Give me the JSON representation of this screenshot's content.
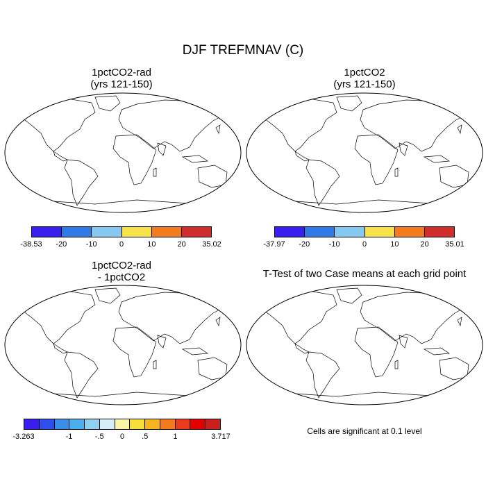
{
  "title": "DJF TREFMNAV (C)",
  "panels": [
    {
      "line1": "1pctCO2-rad",
      "line2": "(yrs 121-150)"
    },
    {
      "line1": "1pctCO2",
      "line2": "(yrs 121-150)"
    },
    {
      "line1": "1pctCO2-rad",
      "line2": "- 1pctCO2"
    },
    {
      "line1": "T-Test of two Case means at each grid point",
      "line2": ""
    }
  ],
  "ttest_note": "Cells are significant at 0.1 level",
  "colorbars": [
    {
      "colors": [
        "#3a1ef0",
        "#2f7ae6",
        "#86c8ef",
        "#f6e24a",
        "#f47a1e",
        "#d22d2d"
      ],
      "labels": [
        "-38.53",
        "-20",
        "-10",
        "0",
        "10",
        "20",
        "35.02"
      ]
    },
    {
      "colors": [
        "#3a1ef0",
        "#2f7ae6",
        "#86c8ef",
        "#f6e24a",
        "#f47a1e",
        "#d22d2d"
      ],
      "labels": [
        "-37.97",
        "-20",
        "-10",
        "0",
        "10",
        "20",
        "35.01"
      ]
    },
    {
      "colors": [
        "#3a1ef0",
        "#2f4fec",
        "#3b8ee8",
        "#4aaeef",
        "#8fd0ef",
        "#d6eef7",
        "#fbf5a8",
        "#f6df3a",
        "#f6b51e",
        "#f27a1c",
        "#ec3a1c",
        "#e00000",
        "#c81e1e"
      ],
      "labels": [
        "-3.263",
        "-1",
        "-.5",
        "0",
        ".5",
        "1",
        "3.717"
      ],
      "label_slots": [
        0,
        3,
        5,
        6.5,
        8,
        10,
        13
      ]
    }
  ],
  "significance_color": "#e00000"
}
